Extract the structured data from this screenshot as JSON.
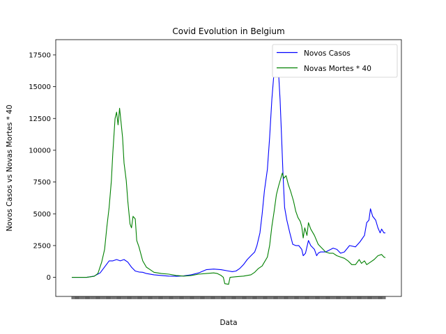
{
  "chart_data": {
    "type": "line",
    "title": "Covid Evolution in Belgium",
    "xlabel": "Data",
    "ylabel": "Novos Casos vs Novas Mortes * 40",
    "ylim": [
      -1500,
      18700
    ],
    "x_count": 420,
    "yticks": [
      0,
      2500,
      5000,
      7500,
      10000,
      12500,
      15000,
      17500
    ],
    "ytick_labels": [
      "0",
      "2500",
      "5000",
      "7500",
      "10000",
      "12500",
      "15000",
      "17500"
    ],
    "legend_position": "upper right",
    "grid": false,
    "series": [
      {
        "name": "Novos Casos",
        "color": "#0000ff",
        "points": [
          [
            0,
            0
          ],
          [
            20,
            0
          ],
          [
            30,
            100
          ],
          [
            38,
            350
          ],
          [
            45,
            900
          ],
          [
            50,
            1300
          ],
          [
            55,
            1300
          ],
          [
            60,
            1400
          ],
          [
            65,
            1300
          ],
          [
            70,
            1400
          ],
          [
            75,
            1200
          ],
          [
            80,
            800
          ],
          [
            85,
            500
          ],
          [
            90,
            420
          ],
          [
            95,
            400
          ],
          [
            100,
            300
          ],
          [
            110,
            200
          ],
          [
            120,
            150
          ],
          [
            130,
            100
          ],
          [
            140,
            80
          ],
          [
            150,
            120
          ],
          [
            160,
            200
          ],
          [
            170,
            350
          ],
          [
            180,
            600
          ],
          [
            190,
            650
          ],
          [
            200,
            600
          ],
          [
            210,
            500
          ],
          [
            215,
            450
          ],
          [
            220,
            500
          ],
          [
            225,
            700
          ],
          [
            230,
            1000
          ],
          [
            235,
            1400
          ],
          [
            240,
            1700
          ],
          [
            245,
            2000
          ],
          [
            248,
            2500
          ],
          [
            252,
            3500
          ],
          [
            255,
            5000
          ],
          [
            258,
            6800
          ],
          [
            262,
            8500
          ],
          [
            265,
            11000
          ],
          [
            268,
            14000
          ],
          [
            270,
            15500
          ],
          [
            273,
            17800
          ],
          [
            275,
            17500
          ],
          [
            277,
            16000
          ],
          [
            279,
            14000
          ],
          [
            281,
            11000
          ],
          [
            283,
            8000
          ],
          [
            285,
            5500
          ],
          [
            288,
            4500
          ],
          [
            292,
            3500
          ],
          [
            296,
            2600
          ],
          [
            300,
            2500
          ],
          [
            304,
            2500
          ],
          [
            308,
            2200
          ],
          [
            310,
            1700
          ],
          [
            313,
            1900
          ],
          [
            315,
            2400
          ],
          [
            317,
            2900
          ],
          [
            320,
            2500
          ],
          [
            325,
            2200
          ],
          [
            328,
            1700
          ],
          [
            330,
            1900
          ],
          [
            333,
            2000
          ],
          [
            340,
            2000
          ],
          [
            350,
            2300
          ],
          [
            355,
            2200
          ],
          [
            360,
            1900
          ],
          [
            365,
            2000
          ],
          [
            372,
            2500
          ],
          [
            380,
            2400
          ],
          [
            386,
            2800
          ],
          [
            392,
            3300
          ],
          [
            395,
            4300
          ],
          [
            398,
            4500
          ],
          [
            400,
            5400
          ],
          [
            403,
            4800
          ],
          [
            407,
            4500
          ],
          [
            410,
            3900
          ],
          [
            413,
            3500
          ],
          [
            415,
            3800
          ],
          [
            418,
            3500
          ],
          [
            420,
            3500
          ]
        ]
      },
      {
        "name": "Novas Mortes * 40",
        "color": "#008000",
        "points": [
          [
            0,
            0
          ],
          [
            20,
            0
          ],
          [
            30,
            80
          ],
          [
            35,
            300
          ],
          [
            40,
            1200
          ],
          [
            44,
            2200
          ],
          [
            47,
            4000
          ],
          [
            50,
            5500
          ],
          [
            53,
            7600
          ],
          [
            55,
            9800
          ],
          [
            58,
            12500
          ],
          [
            60,
            13000
          ],
          [
            62,
            12000
          ],
          [
            64,
            13300
          ],
          [
            66,
            12200
          ],
          [
            68,
            11000
          ],
          [
            70,
            9000
          ],
          [
            73,
            7600
          ],
          [
            75,
            6000
          ],
          [
            78,
            4200
          ],
          [
            80,
            3900
          ],
          [
            82,
            4800
          ],
          [
            85,
            4600
          ],
          [
            87,
            2900
          ],
          [
            90,
            2400
          ],
          [
            95,
            1300
          ],
          [
            100,
            800
          ],
          [
            105,
            600
          ],
          [
            110,
            400
          ],
          [
            120,
            300
          ],
          [
            130,
            250
          ],
          [
            140,
            150
          ],
          [
            150,
            100
          ],
          [
            160,
            150
          ],
          [
            170,
            250
          ],
          [
            180,
            300
          ],
          [
            190,
            350
          ],
          [
            195,
            300
          ],
          [
            200,
            150
          ],
          [
            203,
            0
          ],
          [
            205,
            -500
          ],
          [
            210,
            -550
          ],
          [
            212,
            0
          ],
          [
            220,
            50
          ],
          [
            230,
            100
          ],
          [
            240,
            200
          ],
          [
            245,
            400
          ],
          [
            250,
            700
          ],
          [
            255,
            900
          ],
          [
            258,
            1200
          ],
          [
            262,
            1600
          ],
          [
            265,
            2500
          ],
          [
            268,
            4000
          ],
          [
            271,
            5200
          ],
          [
            274,
            6500
          ],
          [
            277,
            7200
          ],
          [
            280,
            7800
          ],
          [
            282,
            8200
          ],
          [
            284,
            7800
          ],
          [
            287,
            8000
          ],
          [
            290,
            7300
          ],
          [
            293,
            6800
          ],
          [
            297,
            6000
          ],
          [
            300,
            5200
          ],
          [
            303,
            4700
          ],
          [
            306,
            4400
          ],
          [
            308,
            4000
          ],
          [
            310,
            3100
          ],
          [
            312,
            3900
          ],
          [
            315,
            3300
          ],
          [
            317,
            4300
          ],
          [
            320,
            3800
          ],
          [
            325,
            3300
          ],
          [
            330,
            2600
          ],
          [
            335,
            2300
          ],
          [
            340,
            2000
          ],
          [
            345,
            1900
          ],
          [
            350,
            1900
          ],
          [
            355,
            1700
          ],
          [
            360,
            1600
          ],
          [
            365,
            1500
          ],
          [
            370,
            1300
          ],
          [
            375,
            1000
          ],
          [
            380,
            1000
          ],
          [
            385,
            1400
          ],
          [
            388,
            1100
          ],
          [
            392,
            1300
          ],
          [
            395,
            1000
          ],
          [
            400,
            1200
          ],
          [
            405,
            1400
          ],
          [
            410,
            1700
          ],
          [
            415,
            1800
          ],
          [
            418,
            1600
          ],
          [
            420,
            1550
          ]
        ]
      }
    ]
  }
}
